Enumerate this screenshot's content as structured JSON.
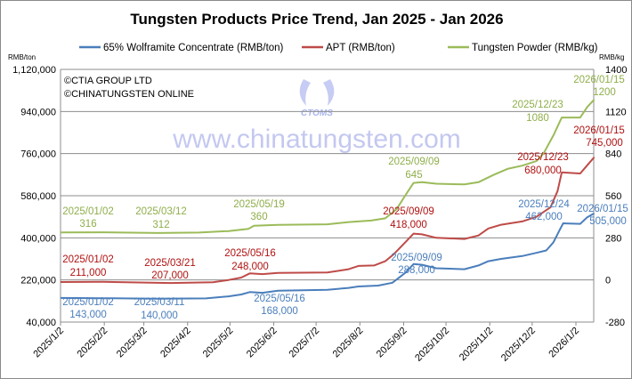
{
  "chart_data": {
    "type": "line",
    "title": "Tungsten Products Price Trend, Jan 2025 - Jan 2026",
    "ylabel_left": "RMB/ton",
    "ylabel_right": "RMB/kg",
    "ylim_left": [
      40000,
      1120000
    ],
    "ylim_right": [
      -280,
      1400
    ],
    "yticks_left": [
      "1,120,000",
      "940,000",
      "760,000",
      "580,000",
      "400,000",
      "220,000",
      "40,000"
    ],
    "yticks_left_values": [
      1120000,
      940000,
      760000,
      580000,
      400000,
      220000,
      40000
    ],
    "yticks_right": [
      "1400",
      "1120",
      "840",
      "560",
      "280",
      "0",
      "-280"
    ],
    "yticks_right_values": [
      1400,
      1120,
      840,
      560,
      280,
      0,
      -280
    ],
    "xticks": [
      "2025/1/2",
      "2025/2/2",
      "2025/3/2",
      "2025/4/2",
      "2025/5/2",
      "2025/6/2",
      "2025/7/2",
      "2025/8/2",
      "2025/9/2",
      "2025/10/2",
      "2025/11/2",
      "2025/12/2",
      "2026/1/2"
    ],
    "xticks_dates": [
      "2025-01-02",
      "2025-02-02",
      "2025-03-02",
      "2025-04-02",
      "2025-05-02",
      "2025-06-02",
      "2025-07-02",
      "2025-08-02",
      "2025-09-02",
      "2025-10-02",
      "2025-11-02",
      "2025-12-02",
      "2026-01-02"
    ],
    "xlim": [
      "2025-01-02",
      "2026-01-15"
    ],
    "grid": "horizontal",
    "legend_placement": "top",
    "series": [
      {
        "name": "65% Wolframite Concentrate (RMB/ton)",
        "axis": "left",
        "color": "#4a7ebb",
        "label_color": "#4a7ebb",
        "points": [
          [
            "2025-01-02",
            143000
          ],
          [
            "2025-02-01",
            142000
          ],
          [
            "2025-03-11",
            140000
          ],
          [
            "2025-04-15",
            141000
          ],
          [
            "2025-05-01",
            150000
          ],
          [
            "2025-05-10",
            158000
          ],
          [
            "2025-05-16",
            168000
          ],
          [
            "2025-05-25",
            165000
          ],
          [
            "2025-06-05",
            174000
          ],
          [
            "2025-07-10",
            178000
          ],
          [
            "2025-07-25",
            186000
          ],
          [
            "2025-08-01",
            192000
          ],
          [
            "2025-08-15",
            196000
          ],
          [
            "2025-08-25",
            208000
          ],
          [
            "2025-09-03",
            250000
          ],
          [
            "2025-09-09",
            288000
          ],
          [
            "2025-09-15",
            285000
          ],
          [
            "2025-09-25",
            270000
          ],
          [
            "2025-10-15",
            266000
          ],
          [
            "2025-10-25",
            282000
          ],
          [
            "2025-11-01",
            300000
          ],
          [
            "2025-11-10",
            310000
          ],
          [
            "2025-11-25",
            322000
          ],
          [
            "2025-12-05",
            336000
          ],
          [
            "2025-12-12",
            346000
          ],
          [
            "2025-12-17",
            380000
          ],
          [
            "2025-12-22",
            440000
          ],
          [
            "2025-12-24",
            462000
          ],
          [
            "2026-01-05",
            460000
          ],
          [
            "2026-01-10",
            488000
          ],
          [
            "2026-01-15",
            505000
          ]
        ]
      },
      {
        "name": "APT (RMB/ton)",
        "axis": "left",
        "color": "#be4b48",
        "label_color": "#b01010",
        "points": [
          [
            "2025-01-02",
            211000
          ],
          [
            "2025-02-01",
            212000
          ],
          [
            "2025-03-21",
            207000
          ],
          [
            "2025-04-20",
            210000
          ],
          [
            "2025-05-01",
            220000
          ],
          [
            "2025-05-10",
            230000
          ],
          [
            "2025-05-16",
            248000
          ],
          [
            "2025-05-25",
            245000
          ],
          [
            "2025-06-05",
            250000
          ],
          [
            "2025-07-10",
            252000
          ],
          [
            "2025-07-25",
            266000
          ],
          [
            "2025-08-01",
            280000
          ],
          [
            "2025-08-12",
            282000
          ],
          [
            "2025-08-20",
            300000
          ],
          [
            "2025-08-26",
            330000
          ],
          [
            "2025-09-03",
            380000
          ],
          [
            "2025-09-09",
            418000
          ],
          [
            "2025-09-15",
            415000
          ],
          [
            "2025-09-25",
            400000
          ],
          [
            "2025-10-15",
            395000
          ],
          [
            "2025-10-25",
            410000
          ],
          [
            "2025-11-01",
            440000
          ],
          [
            "2025-11-10",
            456000
          ],
          [
            "2025-11-25",
            470000
          ],
          [
            "2025-12-05",
            490000
          ],
          [
            "2025-12-15",
            530000
          ],
          [
            "2025-12-20",
            600000
          ],
          [
            "2025-12-23",
            680000
          ],
          [
            "2026-01-05",
            675000
          ],
          [
            "2026-01-10",
            710000
          ],
          [
            "2026-01-15",
            745000
          ]
        ]
      },
      {
        "name": "Tungsten Powder (RMB/kg)",
        "axis": "right",
        "color": "#9bbb59",
        "label_color": "#8fae4a",
        "points": [
          [
            "2025-01-02",
            316
          ],
          [
            "2025-02-01",
            317
          ],
          [
            "2025-03-12",
            312
          ],
          [
            "2025-04-10",
            315
          ],
          [
            "2025-05-01",
            325
          ],
          [
            "2025-05-15",
            340
          ],
          [
            "2025-05-19",
            360
          ],
          [
            "2025-06-05",
            366
          ],
          [
            "2025-07-10",
            370
          ],
          [
            "2025-07-25",
            385
          ],
          [
            "2025-08-10",
            395
          ],
          [
            "2025-08-20",
            410
          ],
          [
            "2025-08-28",
            470
          ],
          [
            "2025-09-03",
            560
          ],
          [
            "2025-09-09",
            645
          ],
          [
            "2025-09-15",
            650
          ],
          [
            "2025-09-25",
            640
          ],
          [
            "2025-10-15",
            635
          ],
          [
            "2025-10-25",
            650
          ],
          [
            "2025-11-05",
            700
          ],
          [
            "2025-11-15",
            740
          ],
          [
            "2025-11-25",
            760
          ],
          [
            "2025-12-05",
            790
          ],
          [
            "2025-12-10",
            840
          ],
          [
            "2025-12-17",
            960
          ],
          [
            "2025-12-23",
            1080
          ],
          [
            "2026-01-05",
            1080
          ],
          [
            "2026-01-10",
            1150
          ],
          [
            "2026-01-15",
            1200
          ]
        ]
      }
    ],
    "annotations": [
      {
        "series": 2,
        "date": "2025/01/02",
        "value": "316"
      },
      {
        "series": 2,
        "date": "2025/03/12",
        "value": "312"
      },
      {
        "series": 2,
        "date": "2025/05/19",
        "value": "360"
      },
      {
        "series": 2,
        "date": "2025/09/09",
        "value": "645"
      },
      {
        "series": 2,
        "date": "2025/12/23",
        "value": "1080"
      },
      {
        "series": 2,
        "date": "2026/01/15",
        "value": "1200"
      },
      {
        "series": 1,
        "date": "2025/01/02",
        "value": "211,000"
      },
      {
        "series": 1,
        "date": "2025/03/21",
        "value": "207,000"
      },
      {
        "series": 1,
        "date": "2025/05/16",
        "value": "248,000"
      },
      {
        "series": 1,
        "date": "2025/09/09",
        "value": "418,000"
      },
      {
        "series": 1,
        "date": "2025/12/23",
        "value": "680,000"
      },
      {
        "series": 1,
        "date": "2026/01/15",
        "value": "745,000"
      },
      {
        "series": 0,
        "date": "2025/01/02",
        "value": "143,000"
      },
      {
        "series": 0,
        "date": "2025/03/11",
        "value": "140,000"
      },
      {
        "series": 0,
        "date": "2025/05/16",
        "value": "168,000"
      },
      {
        "series": 0,
        "date": "2025/09/09",
        "value": "288,000"
      },
      {
        "series": 0,
        "date": "2025/12/24",
        "value": "462,000"
      },
      {
        "series": 0,
        "date": "2026/01/15",
        "value": "505,000"
      }
    ],
    "copyright": [
      "©CTIA GROUP LTD",
      "©CHINATUNGSTEN ONLINE"
    ],
    "watermark": {
      "logo_text": "CTOMS",
      "url_text": "www.chinatungsten.com"
    }
  }
}
